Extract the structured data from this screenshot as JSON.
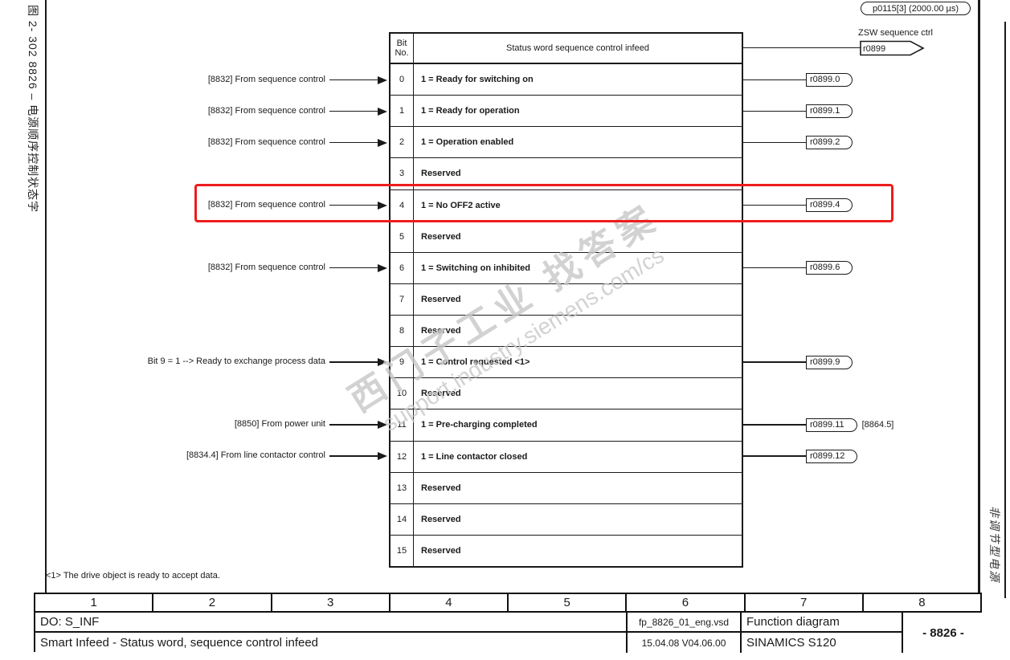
{
  "sidebar_left": {
    "text": "图 2- 302      8826  –  电源顺序控制状态字"
  },
  "sidebar_right": {
    "text": "非调节型电源"
  },
  "header": {
    "cycle_time": "p0115[3] (2000.00 µs)",
    "zsw_label": "ZSW sequence ctrl",
    "zsw_param": "r0899"
  },
  "table": {
    "bit_header_line1": "Bit",
    "bit_header_line2": "No.",
    "title": "Status word sequence control infeed",
    "bits": [
      {
        "no": "0",
        "label": "1 = Ready for switching on",
        "input": "[8832] From sequence control",
        "output": "r0899.0"
      },
      {
        "no": "1",
        "label": "1 = Ready for operation",
        "input": "[8832] From sequence control",
        "output": "r0899.1"
      },
      {
        "no": "2",
        "label": "1 = Operation enabled",
        "input": "[8832] From sequence control",
        "output": "r0899.2"
      },
      {
        "no": "3",
        "label": "Reserved"
      },
      {
        "no": "4",
        "label": "1 = No OFF2 active",
        "input": "[8832] From sequence control",
        "output": "r0899.4",
        "highlighted": true
      },
      {
        "no": "5",
        "label": "Reserved"
      },
      {
        "no": "6",
        "label": "1 = Switching on inhibited",
        "input": "[8832] From sequence control",
        "output": "r0899.6"
      },
      {
        "no": "7",
        "label": "Reserved"
      },
      {
        "no": "8",
        "label": "Reserved"
      },
      {
        "no": "9",
        "label": "1 = Control requested  <1>",
        "input": "Bit 9 = 1 --> Ready to exchange process data",
        "output": "r0899.9"
      },
      {
        "no": "10",
        "label": "Reserved"
      },
      {
        "no": "11",
        "label": "1 = Pre-charging completed",
        "input": "[8850] From power unit",
        "output": "r0899.11",
        "ref": "[8864.5]"
      },
      {
        "no": "12",
        "label": "1 = Line contactor closed",
        "input": "[8834.4] From line contactor control",
        "output": "r0899.12"
      },
      {
        "no": "13",
        "label": "Reserved"
      },
      {
        "no": "14",
        "label": "Reserved"
      },
      {
        "no": "15",
        "label": "Reserved"
      }
    ]
  },
  "footnote": {
    "text": "<1> The drive object is ready to accept data."
  },
  "watermark": {
    "line1": "西门子工业 找答案",
    "line2": "support.industry.siemens.com/cs"
  },
  "footer": {
    "columns": [
      "1",
      "2",
      "3",
      "4",
      "5",
      "6",
      "7",
      "8"
    ],
    "do_label": "DO: S_INF",
    "title": "Smart Infeed - Status word, sequence control infeed",
    "file": "fp_8826_01_eng.vsd",
    "date_version": "15.04.08  V04.06.00",
    "doc_type": "Function diagram",
    "product": "SINAMICS S120",
    "page_number": "- 8826 -"
  },
  "colors": {
    "highlight_red": "#ee1c1c",
    "line_black": "#1a1a1a",
    "watermark_gray": "#c7c7c7"
  }
}
